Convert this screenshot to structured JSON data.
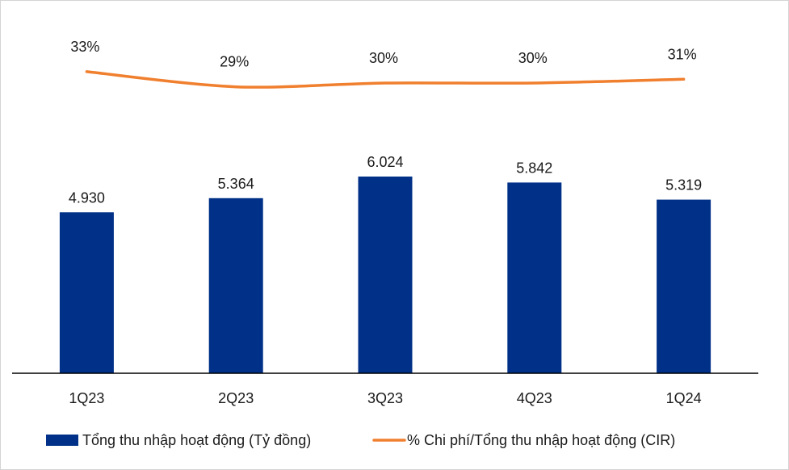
{
  "chart_data": {
    "type": "bar",
    "title": "",
    "xlabel": "",
    "ylabel": "",
    "categories": [
      "1Q23",
      "2Q23",
      "3Q23",
      "4Q23",
      "1Q24"
    ],
    "series": [
      {
        "name": "Tổng thu nhập hoạt động (Tỷ đồng)",
        "type": "bar",
        "values": [
          4930,
          5364,
          6024,
          5842,
          5319
        ],
        "value_labels": [
          "4.930",
          "5.364",
          "6.024",
          "5.842",
          "5.319"
        ],
        "color": "#003087"
      },
      {
        "name": "% Chi phí/Tổng thu nhập hoạt động (CIR)",
        "type": "line",
        "values": [
          33,
          29,
          30,
          30,
          31
        ],
        "value_labels": [
          "33%",
          "29%",
          "30%",
          "30%",
          "31%"
        ],
        "color": "#f07f2e"
      }
    ],
    "legend_position": "bottom",
    "grid": false
  }
}
